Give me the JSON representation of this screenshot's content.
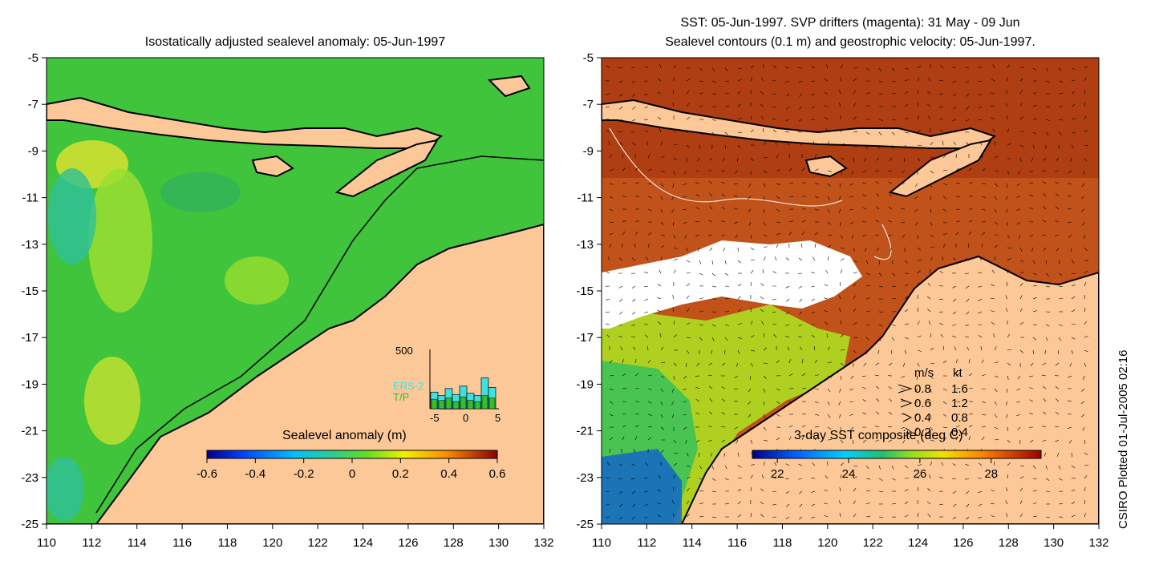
{
  "left_panel": {
    "title": "Isostatically adjusted sealevel anomaly: 05-Jun-1997",
    "colorbar_label": "Sealevel anomaly (m)",
    "colorbar_ticks": [
      "-0.6",
      "-0.4",
      "-0.2",
      "0",
      "0.2",
      "0.4",
      "0.6"
    ],
    "histogram": {
      "ymax_label": "500",
      "legend": [
        "ERS-2",
        "T/P"
      ],
      "legend_colors": [
        "#40e0e0",
        "#30c030"
      ],
      "xticks": [
        "-5",
        "0",
        "5"
      ],
      "ers2_counts": [
        140,
        110,
        170,
        120,
        190,
        130,
        110,
        260,
        180
      ],
      "tp_counts": [
        80,
        70,
        90,
        60,
        100,
        70,
        60,
        110,
        90
      ]
    }
  },
  "right_panel": {
    "title_line1": "SST: 05-Jun-1997. SVP drifters (magenta): 31 May - 09 Jun",
    "title_line2": "Sealevel contours (0.1 m) and geostrophic velocity: 05-Jun-1997.",
    "colorbar_label": "3-day SST composite (deg C)",
    "colorbar_ticks": [
      "22",
      "24",
      "26",
      "28"
    ],
    "velocity_legend": {
      "header_ms": "m/s",
      "header_kt": "kt",
      "rows": [
        {
          "ms": "0.8",
          "kt": "1.6"
        },
        {
          "ms": "0.6",
          "kt": "1.2"
        },
        {
          "ms": "0.4",
          "kt": "0.8"
        },
        {
          "ms": "0.2",
          "kt": "0.4"
        }
      ]
    }
  },
  "axes": {
    "y_ticks": [
      "-5",
      "-7",
      "-9",
      "-11",
      "-13",
      "-15",
      "-17",
      "-19",
      "-21",
      "-23",
      "-25"
    ],
    "x_ticks": [
      "110",
      "112",
      "114",
      "116",
      "118",
      "120",
      "122",
      "124",
      "126",
      "128",
      "130",
      "132"
    ]
  },
  "side_label": "CSIRO Plotted 01-Jul-2005 02:16",
  "colors": {
    "land": "#fdc898",
    "ocean_left": "#3fc43c",
    "ocean_right": "#c0521a",
    "cloud": "#ffffff"
  }
}
